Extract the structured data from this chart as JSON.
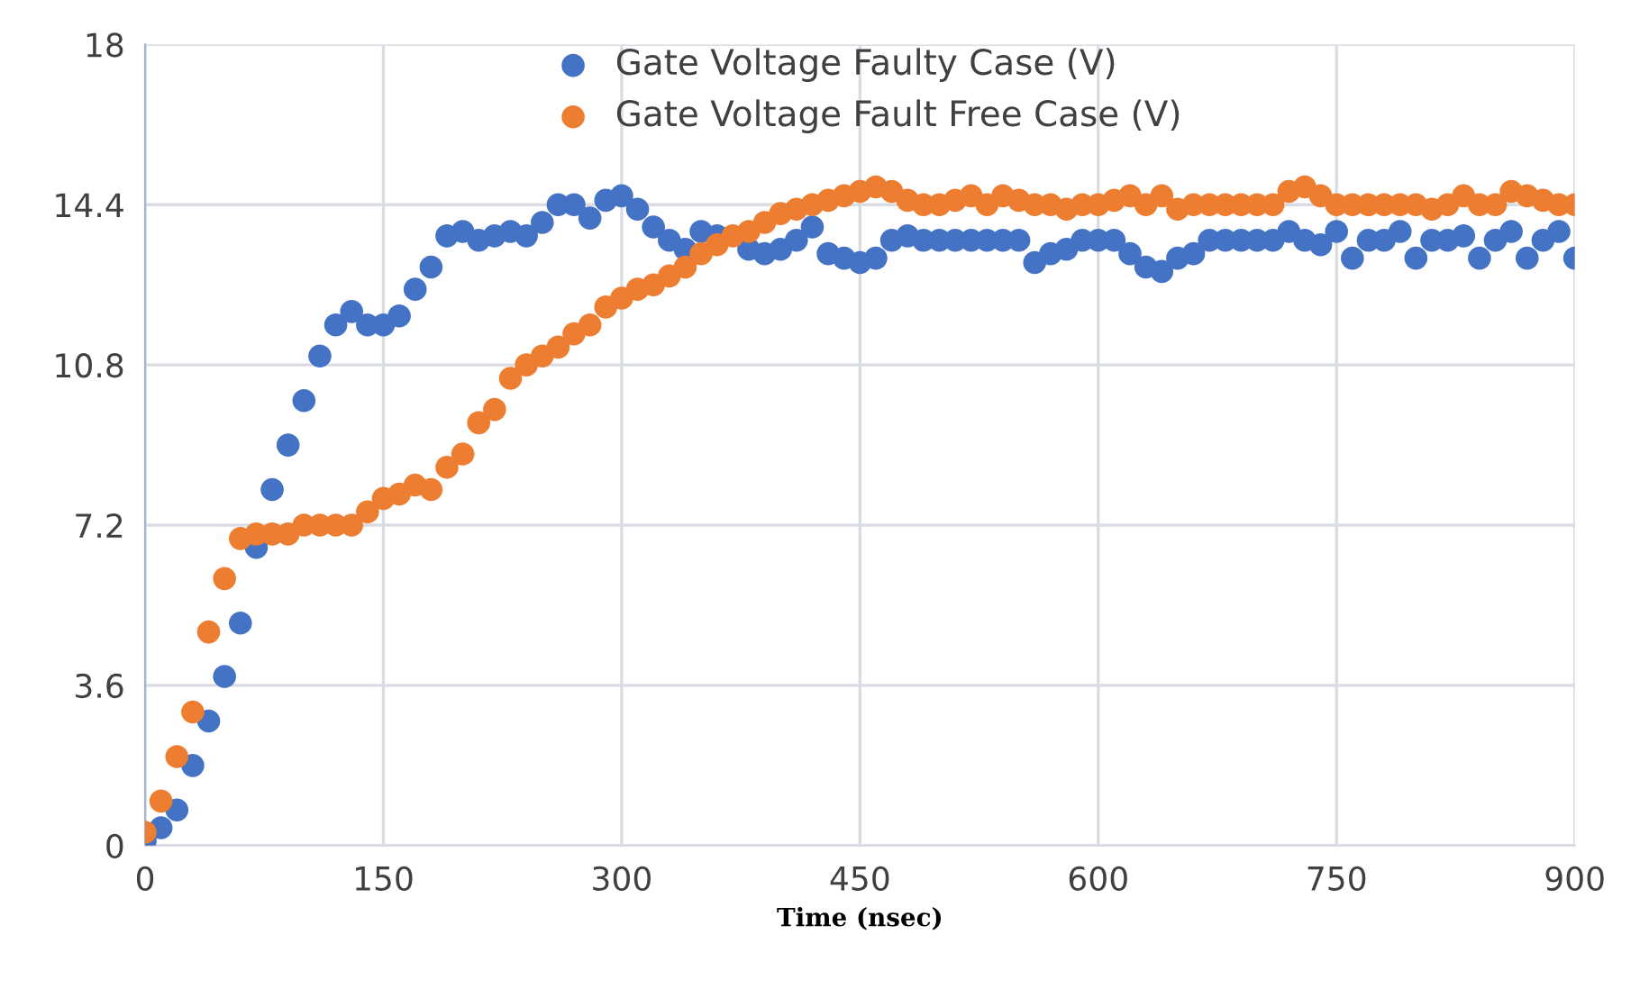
{
  "chart_data": {
    "type": "scatter",
    "xlabel": "Time (nsec)",
    "xlim": [
      0,
      900
    ],
    "xticks": [
      0,
      150,
      300,
      450,
      600,
      750,
      900
    ],
    "ylim": [
      0,
      18
    ],
    "yticks": [
      0,
      3.6,
      7.2,
      10.8,
      14.4,
      18
    ],
    "grid": true,
    "legend": "top",
    "marker": "circle",
    "x": [
      0,
      10,
      20,
      30,
      40,
      50,
      60,
      70,
      80,
      90,
      100,
      110,
      120,
      130,
      140,
      150,
      160,
      170,
      180,
      190,
      200,
      210,
      220,
      230,
      240,
      250,
      260,
      270,
      280,
      290,
      300,
      310,
      320,
      330,
      340,
      350,
      360,
      370,
      380,
      390,
      400,
      410,
      420,
      430,
      440,
      450,
      460,
      470,
      480,
      490,
      500,
      510,
      520,
      530,
      540,
      550,
      560,
      570,
      580,
      590,
      600,
      610,
      620,
      630,
      640,
      650,
      660,
      670,
      680,
      690,
      700,
      710,
      720,
      730,
      740,
      750,
      760,
      770,
      780,
      790,
      800,
      810,
      820,
      830,
      840,
      850,
      860,
      870,
      880,
      890,
      900
    ],
    "series": [
      {
        "name": "Gate Voltage Faulty Case (V)",
        "color": "#4472c4",
        "values": [
          0.1,
          0.4,
          0.8,
          1.8,
          2.8,
          3.8,
          5.0,
          6.7,
          8.0,
          9.0,
          10.0,
          11.0,
          11.7,
          12.0,
          11.7,
          11.7,
          11.9,
          12.5,
          13.0,
          13.7,
          13.8,
          13.6,
          13.7,
          13.8,
          13.7,
          14.0,
          14.4,
          14.4,
          14.1,
          14.5,
          14.6,
          14.3,
          13.9,
          13.6,
          13.4,
          13.8,
          13.7,
          null,
          13.4,
          13.3,
          13.4,
          13.6,
          13.9,
          13.3,
          13.2,
          13.1,
          13.2,
          13.6,
          13.7,
          13.6,
          13.6,
          13.6,
          13.6,
          13.6,
          13.6,
          13.6,
          13.1,
          13.3,
          13.4,
          13.6,
          13.6,
          13.6,
          13.3,
          13.0,
          12.9,
          13.2,
          13.3,
          13.6,
          13.6,
          13.6,
          13.6,
          13.6,
          13.8,
          13.6,
          13.5,
          13.8,
          13.2,
          13.6,
          13.6,
          13.8,
          13.2,
          13.6,
          13.6,
          13.7,
          13.2,
          13.6,
          13.8,
          13.2,
          13.6,
          13.8,
          13.2
        ]
      },
      {
        "name": "Gate Voltage Fault Free Case (V)",
        "color": "#ed7d31",
        "values": [
          0.3,
          1.0,
          2.0,
          3.0,
          4.8,
          6.0,
          6.9,
          7.0,
          7.0,
          7.0,
          7.2,
          7.2,
          7.2,
          7.2,
          7.5,
          7.8,
          7.9,
          8.1,
          8.0,
          8.5,
          8.8,
          9.5,
          9.8,
          10.5,
          10.8,
          11.0,
          11.2,
          11.5,
          11.7,
          12.1,
          12.3,
          12.5,
          12.6,
          12.8,
          13.0,
          13.3,
          13.5,
          13.7,
          13.8,
          14.0,
          14.2,
          14.3,
          14.4,
          14.5,
          14.6,
          14.7,
          14.8,
          14.7,
          14.5,
          14.4,
          14.4,
          14.5,
          14.6,
          14.4,
          14.6,
          14.5,
          14.4,
          14.4,
          14.3,
          14.4,
          14.4,
          14.5,
          14.6,
          14.4,
          14.6,
          14.3,
          14.4,
          14.4,
          14.4,
          14.4,
          14.4,
          14.4,
          14.7,
          14.8,
          14.6,
          14.4,
          14.4,
          14.4,
          14.4,
          14.4,
          14.4,
          14.3,
          14.4,
          14.6,
          14.4,
          14.4,
          14.7,
          14.6,
          14.5,
          14.4,
          14.4
        ]
      }
    ]
  }
}
